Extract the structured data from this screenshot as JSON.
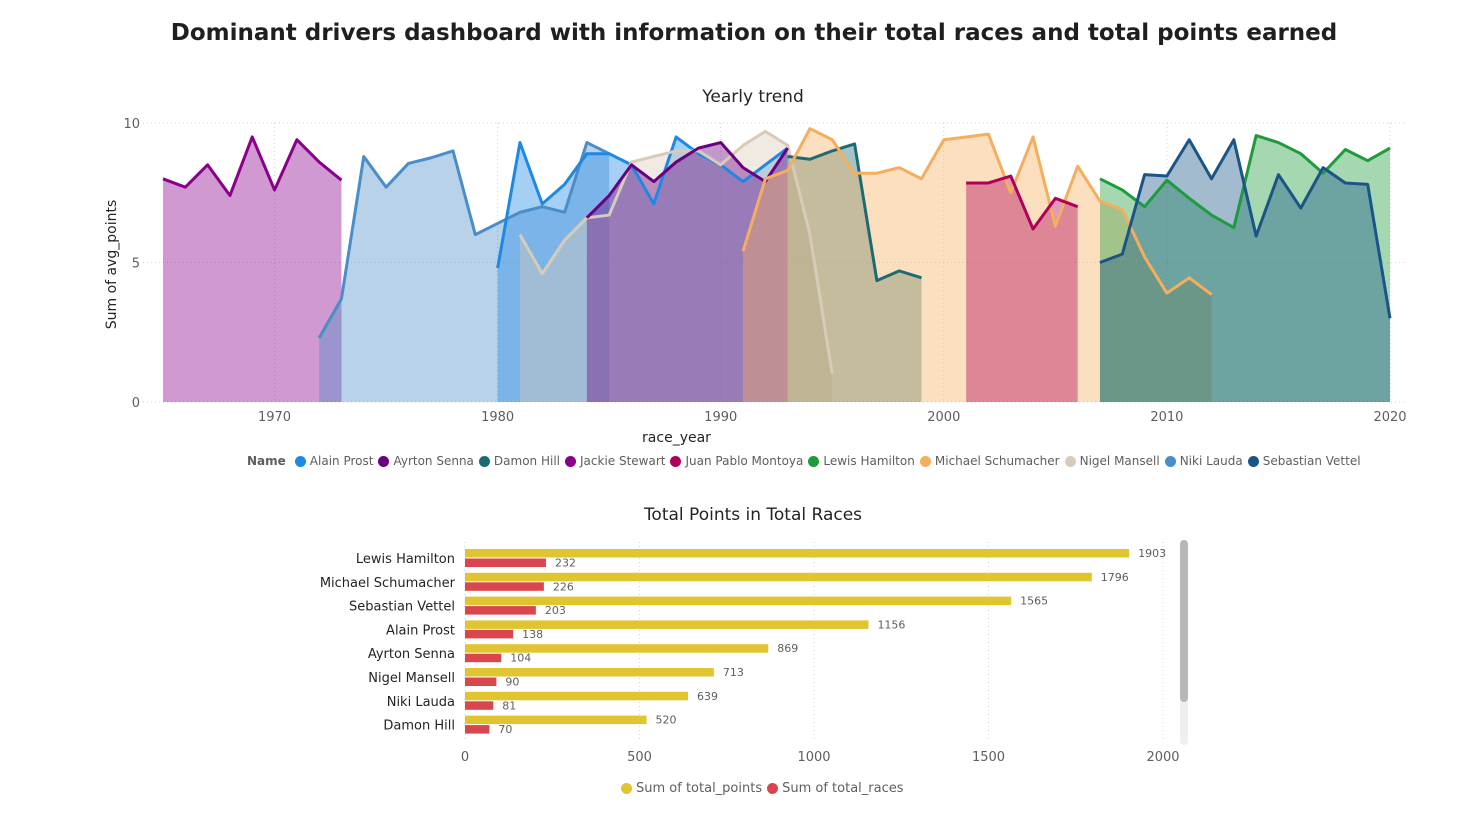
{
  "dashboard": {
    "title": "Dominant drivers dashboard with information on their total races and total points earned"
  },
  "chart_data": [
    {
      "type": "area",
      "title": "Yearly trend",
      "xlabel": "race_year",
      "ylabel": "Sum of avg_points",
      "xlim": [
        1965,
        2020
      ],
      "ylim": [
        0,
        10
      ],
      "x_ticks": [
        1970,
        1980,
        1990,
        2000,
        2010,
        2020
      ],
      "y_ticks": [
        0,
        5,
        10
      ],
      "grid": true,
      "legend_title": "Name",
      "legend_position": "bottom",
      "series": [
        {
          "name": "Jackie Stewart",
          "color": "#8B008B",
          "x": [
            1965,
            1966,
            1967,
            1968,
            1969,
            1970,
            1971,
            1972,
            1973
          ],
          "y": [
            8.0,
            7.7,
            8.5,
            7.4,
            9.5,
            7.6,
            9.4,
            8.6,
            7.95
          ]
        },
        {
          "name": "Niki Lauda",
          "color": "#4A8EC9",
          "x": [
            1972,
            1973,
            1974,
            1975,
            1976,
            1977,
            1978,
            1979,
            1980,
            1981,
            1982,
            1983,
            1984,
            1985
          ],
          "y": [
            2.3,
            3.7,
            8.8,
            7.7,
            8.55,
            8.75,
            9.0,
            6.0,
            6.4,
            6.8,
            7.0,
            6.8,
            9.3,
            8.9
          ]
        },
        {
          "name": "Alain Prost",
          "color": "#1E88E5",
          "x": [
            1980,
            1981,
            1982,
            1983,
            1984,
            1985,
            1986,
            1987,
            1988,
            1989,
            1990,
            1991,
            1992,
            1993
          ],
          "y": [
            4.8,
            9.3,
            7.1,
            7.8,
            8.9,
            8.9,
            8.5,
            7.1,
            9.5,
            8.9,
            8.5,
            7.9,
            8.5,
            9.1
          ]
        },
        {
          "name": "Nigel Mansell",
          "color": "#D9CBB9",
          "x": [
            1981,
            1982,
            1983,
            1984,
            1985,
            1986,
            1987,
            1988,
            1989,
            1990,
            1991,
            1992,
            1993,
            1994,
            1995
          ],
          "y": [
            6.0,
            4.6,
            5.8,
            6.6,
            6.7,
            8.6,
            8.8,
            9.0,
            9.0,
            8.5,
            9.2,
            9.7,
            9.2,
            6.0,
            1.0
          ]
        },
        {
          "name": "Ayrton Senna",
          "color": "#6A0080",
          "x": [
            1984,
            1985,
            1986,
            1987,
            1988,
            1989,
            1990,
            1991,
            1992,
            1993
          ],
          "y": [
            6.6,
            7.4,
            8.5,
            7.9,
            8.6,
            9.1,
            9.3,
            8.4,
            7.9,
            9.1
          ]
        },
        {
          "name": "Damon Hill",
          "color": "#1D6B72",
          "x": [
            1993,
            1994,
            1995,
            1996,
            1997,
            1998,
            1999
          ],
          "y": [
            8.8,
            8.7,
            9.0,
            9.25,
            4.35,
            4.7,
            4.45
          ]
        },
        {
          "name": "Michael Schumacher",
          "color": "#F4AE5E",
          "x": [
            1991,
            1992,
            1993,
            1994,
            1995,
            1996,
            1997,
            1998,
            1999,
            2000,
            2001,
            2002,
            2003,
            2004,
            2005,
            2006,
            2007,
            2008,
            2009,
            2010,
            2011,
            2012
          ],
          "y": [
            5.4,
            8.0,
            8.3,
            9.8,
            9.4,
            8.2,
            8.2,
            8.4,
            8.0,
            9.4,
            9.5,
            9.6,
            7.5,
            9.5,
            6.3,
            8.45,
            7.2,
            6.9,
            5.2,
            3.9,
            4.45,
            3.85
          ]
        },
        {
          "name": "Juan Pablo Montoya",
          "color": "#B0005A",
          "x": [
            2001,
            2002,
            2003,
            2004,
            2005,
            2006
          ],
          "y": [
            7.85,
            7.85,
            8.1,
            6.2,
            7.3,
            7.0
          ]
        },
        {
          "name": "Lewis Hamilton",
          "color": "#1E9B3C",
          "x": [
            2007,
            2008,
            2009,
            2010,
            2011,
            2012,
            2013,
            2014,
            2015,
            2016,
            2017,
            2018,
            2019,
            2020
          ],
          "y": [
            8.0,
            7.6,
            7.0,
            7.95,
            7.3,
            6.7,
            6.25,
            9.55,
            9.3,
            8.9,
            8.2,
            9.05,
            8.65,
            9.1
          ]
        },
        {
          "name": "Sebastian Vettel",
          "color": "#1A5588",
          "x": [
            2007,
            2008,
            2009,
            2010,
            2011,
            2012,
            2013,
            2014,
            2015,
            2016,
            2017,
            2018,
            2019,
            2020
          ],
          "y": [
            5.0,
            5.3,
            8.15,
            8.1,
            9.4,
            8.0,
            9.4,
            5.95,
            8.15,
            6.95,
            8.4,
            7.85,
            7.8,
            3.0
          ]
        }
      ]
    },
    {
      "type": "bar",
      "orientation": "horizontal",
      "title": "Total Points in Total Races",
      "categories": [
        "Lewis Hamilton",
        "Michael Schumacher",
        "Sebastian Vettel",
        "Alain Prost",
        "Ayrton Senna",
        "Nigel Mansell",
        "Niki Lauda",
        "Damon Hill"
      ],
      "xlim": [
        0,
        2000
      ],
      "x_ticks": [
        0,
        500,
        1000,
        1500,
        2000
      ],
      "grid": true,
      "legend_position": "bottom",
      "series": [
        {
          "name": "Sum of total_points",
          "color": "#E0C430",
          "values": [
            1903,
            1796,
            1565,
            1156,
            869,
            713,
            639,
            520
          ]
        },
        {
          "name": "Sum of total_races",
          "color": "#D9464E",
          "values": [
            232,
            226,
            203,
            138,
            104,
            90,
            81,
            70
          ]
        }
      ]
    }
  ]
}
